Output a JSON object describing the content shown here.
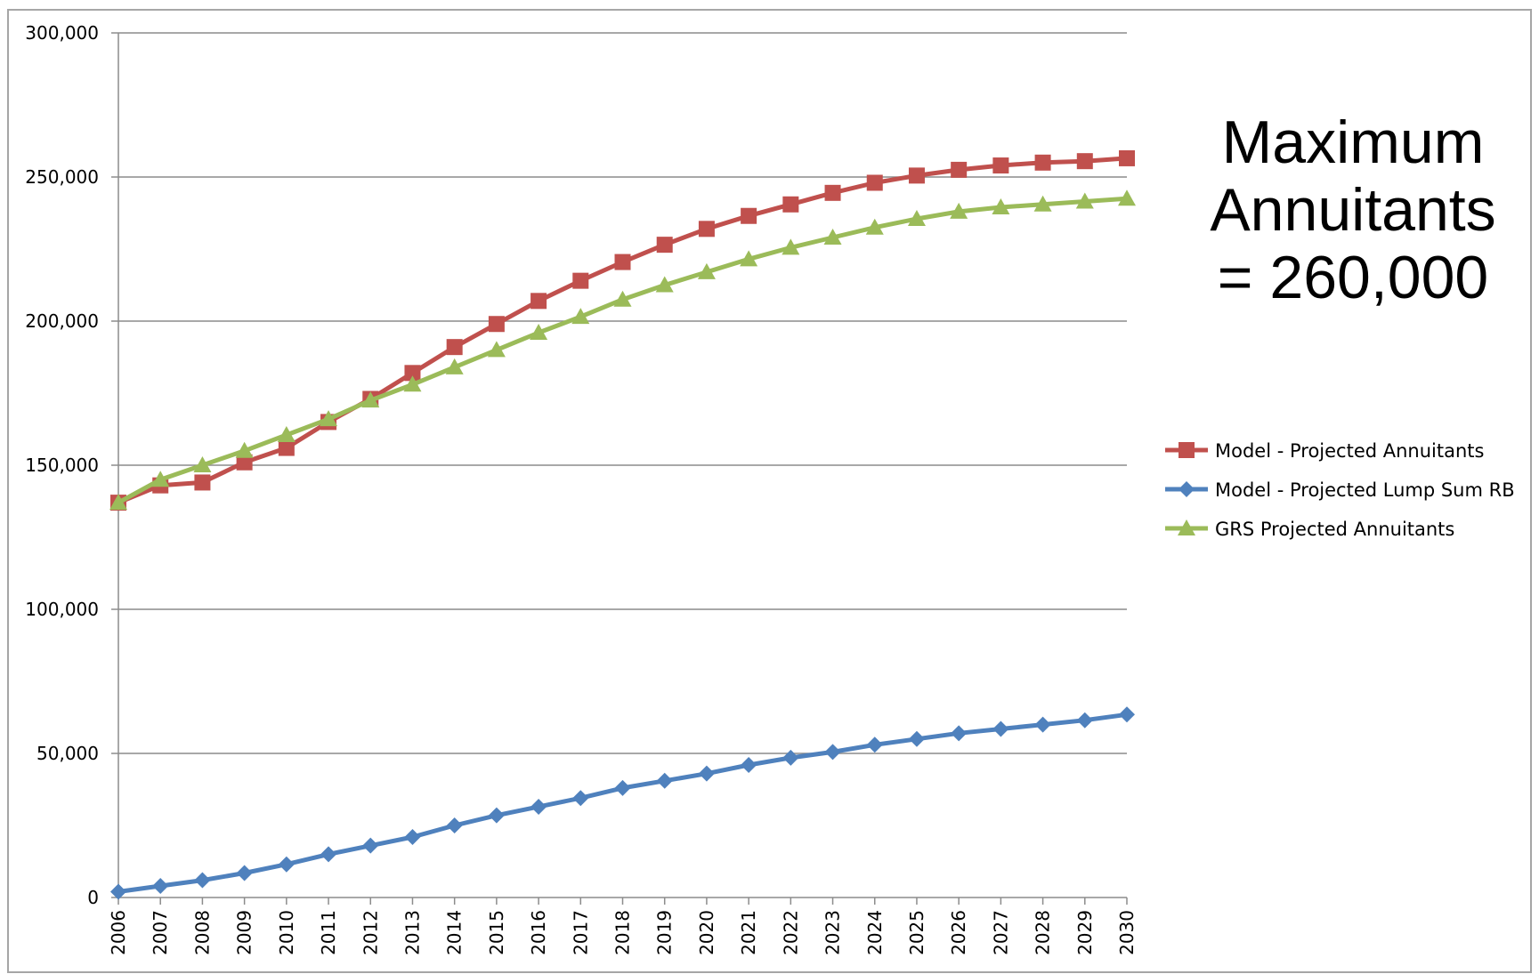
{
  "chart_data": {
    "type": "line",
    "title": "",
    "xlabel": "",
    "ylabel": "",
    "ylim": [
      0,
      300000
    ],
    "y_ticks": [
      0,
      50000,
      100000,
      150000,
      200000,
      250000,
      300000
    ],
    "y_tick_labels": [
      "0",
      "50,000",
      "100,000",
      "150,000",
      "200,000",
      "250,000",
      "300,000"
    ],
    "grid": true,
    "legend_position": "right",
    "x": [
      "2006",
      "2007",
      "2008",
      "2009",
      "2010",
      "2011",
      "2012",
      "2013",
      "2014",
      "2015",
      "2016",
      "2017",
      "2018",
      "2019",
      "2020",
      "2021",
      "2022",
      "2023",
      "2024",
      "2025",
      "2026",
      "2027",
      "2028",
      "2029",
      "2030"
    ],
    "series": [
      {
        "name": "Model - Projected Annuitants",
        "color": "#c0504d",
        "marker": "square",
        "values": [
          137000,
          143000,
          144000,
          151000,
          156000,
          165000,
          173000,
          182000,
          191000,
          199000,
          207000,
          214000,
          220500,
          226500,
          232000,
          236500,
          240500,
          244500,
          248000,
          250500,
          252500,
          254000,
          255000,
          255500,
          256500
        ]
      },
      {
        "name": "Model - Projected Lump Sum RB",
        "color": "#4f81bd",
        "marker": "diamond",
        "values": [
          2000,
          4000,
          6000,
          8500,
          11500,
          15000,
          18000,
          21000,
          25000,
          28500,
          31500,
          34500,
          38000,
          40500,
          43000,
          46000,
          48500,
          50500,
          53000,
          55000,
          57000,
          58500,
          60000,
          61500,
          63500
        ]
      },
      {
        "name": "GRS Projected Annuitants",
        "color": "#9bbb59",
        "marker": "triangle",
        "values": [
          137000,
          145000,
          150000,
          155000,
          160500,
          166000,
          172500,
          178000,
          184000,
          190000,
          196000,
          201500,
          207500,
          212500,
          217000,
          221500,
          225500,
          229000,
          232500,
          235500,
          238000,
          239500,
          240500,
          241500,
          242500
        ]
      }
    ]
  },
  "annotation": {
    "lines": [
      "Maximum",
      "Annuitants",
      "= 260,000"
    ]
  }
}
